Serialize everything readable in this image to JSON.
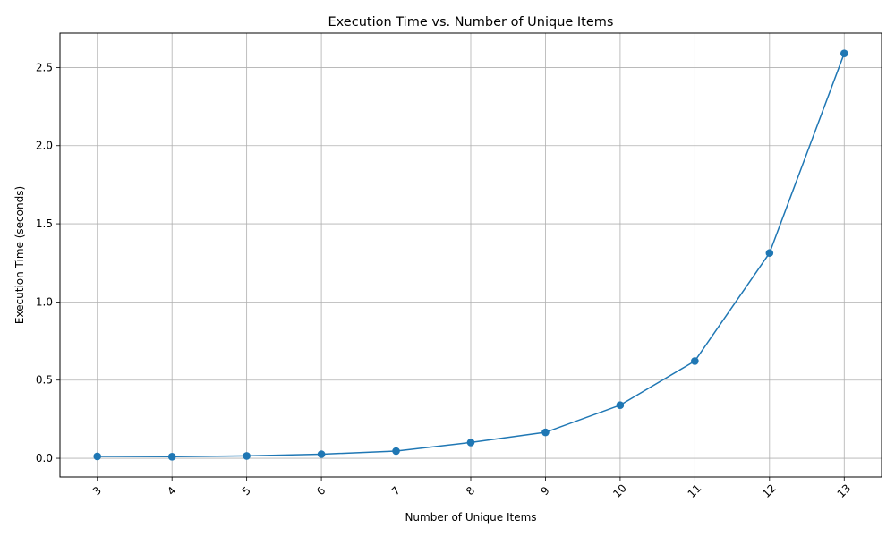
{
  "chart_data": {
    "type": "line",
    "title": "Execution Time vs. Number of Unique Items",
    "xlabel": "Number of Unique Items",
    "ylabel": "Execution Time (seconds)",
    "x": [
      3,
      4,
      5,
      6,
      7,
      8,
      9,
      10,
      11,
      12,
      13
    ],
    "series": [
      {
        "values": [
          0.012,
          0.01,
          0.015,
          0.026,
          0.046,
          0.101,
          0.166,
          0.34,
          0.622,
          1.313,
          2.59
        ],
        "color": "#1f77b4",
        "marker": "circle"
      }
    ],
    "xticks": [
      "3",
      "4",
      "5",
      "6",
      "7",
      "8",
      "9",
      "10",
      "11",
      "12",
      "13"
    ],
    "xtick_rotation": 45,
    "yticks": [
      0.0,
      0.5,
      1.0,
      1.5,
      2.0,
      2.5
    ],
    "ytick_labels": [
      "0.0",
      "0.5",
      "1.0",
      "1.5",
      "2.0",
      "2.5"
    ],
    "xlim": [
      2.5,
      13.5
    ],
    "ylim": [
      -0.12,
      2.72
    ],
    "grid": true,
    "grid_color": "#b0b0b0"
  }
}
